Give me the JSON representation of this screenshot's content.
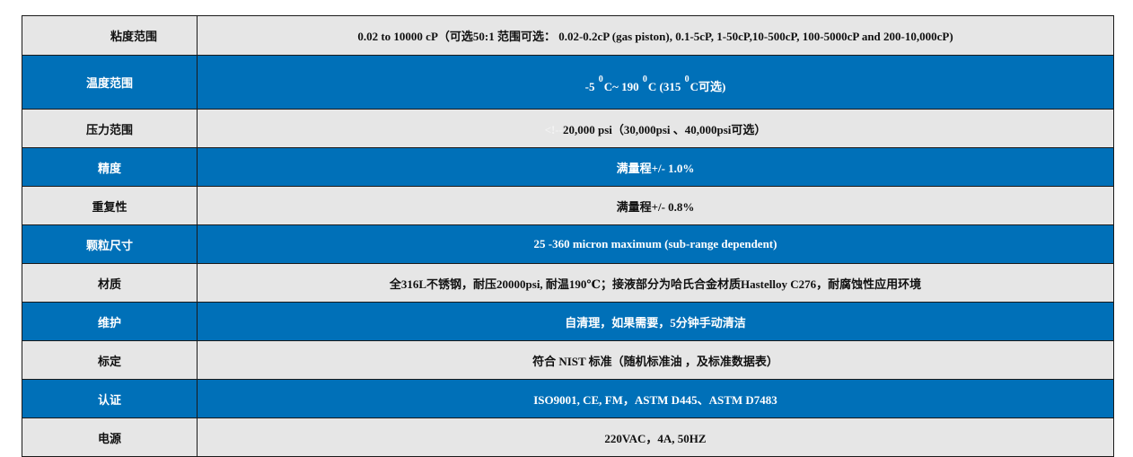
{
  "colors": {
    "light_row": "#e6e6e6",
    "blue_row": "#0070b8",
    "border": "#1a1a1a"
  },
  "rows": [
    {
      "label": "粘度范围",
      "value": "0.02 to 10000 cP（可选50:1 范围可选：  0.02-0.2cP (gas piston), 0.1-5cP, 1-50cP,10-500cP, 100-5000cP and 200-10,000cP)"
    },
    {
      "label": "温度范围",
      "value_parts": [
        "-5 ",
        "0",
        "C~ 190 ",
        "0",
        "C (315 ",
        "0",
        "C可选)"
      ]
    },
    {
      "label": "压力范围",
      "ghost": "<!--",
      "value": "20,000 psi（30,000psi 、40,000psi可选）"
    },
    {
      "label": "精度",
      "value": "满量程+/- 1.0%"
    },
    {
      "label": "重复性",
      "value": "满量程+/- 0.8%"
    },
    {
      "label": "颗粒尺寸",
      "value": "25 -360 micron maximum (sub-range dependent)"
    },
    {
      "label": "材质",
      "value": "全316L不锈钢，耐压20000psi, 耐温190℃；接液部分为哈氏合金材质Hastelloy C276，耐腐蚀性应用环境"
    },
    {
      "label": "维护",
      "value": "自清理，如果需要，5分钟手动清洁"
    },
    {
      "label": "标定",
      "value": "符合 NIST 标准（随机标准油 ，及标准数据表）"
    },
    {
      "label": "认证",
      "value": "ISO9001, CE, FM，ASTM D445、ASTM D7483"
    },
    {
      "label": "电源",
      "value": "220VAC，4A, 50HZ"
    }
  ]
}
